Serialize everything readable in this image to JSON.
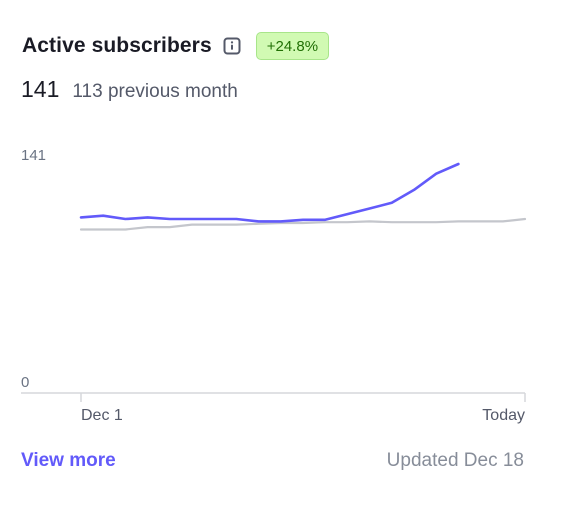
{
  "card": {
    "title": "Active subscribers",
    "info_icon": "info-square-icon",
    "change_badge": "+24.8%",
    "current_value": "141",
    "previous_text": "113 previous month",
    "view_more_label": "View more",
    "updated_text": "Updated Dec 18"
  },
  "colors": {
    "current_series": "#625afa",
    "previous_series": "#c4c6cc",
    "badge_bg": "#d1fab3",
    "badge_text": "#217005",
    "link": "#625afa"
  },
  "chart_data": {
    "type": "line",
    "ylim": [
      0,
      141
    ],
    "y_tick_labels": [
      "0",
      "141"
    ],
    "x_tick_labels": [
      "Dec 1",
      "Today"
    ],
    "grid": false,
    "series": [
      {
        "color": "#c4c6cc",
        "values": [
          100.5,
          100.5,
          100.5,
          102,
          102,
          103.5,
          103.5,
          103.5,
          104,
          104.5,
          104.5,
          105,
          105,
          105.5,
          105,
          105,
          105,
          105.5,
          105.5,
          105.5,
          107
        ]
      },
      {
        "color": "#625afa",
        "values": [
          108,
          109,
          107,
          108,
          107,
          107,
          107,
          107,
          105.5,
          105.5,
          106.5,
          106.5,
          110,
          113.5,
          117,
          125,
          135,
          141
        ]
      }
    ]
  }
}
